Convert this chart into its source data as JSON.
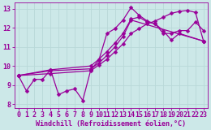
{
  "background_color": "#cce8e8",
  "grid_color": "#aadddd",
  "line_color": "#990099",
  "markersize": 2.5,
  "linewidth": 0.9,
  "xlabel": "Windchill (Refroidissement éolien,°C)",
  "xlabel_fontsize": 6.0,
  "tick_fontsize": 6.0,
  "ylim": [
    7.8,
    13.3
  ],
  "xlim": [
    -0.5,
    23.5
  ],
  "yticks": [
    8,
    9,
    10,
    11,
    12,
    13
  ],
  "xticks": [
    0,
    1,
    2,
    3,
    4,
    5,
    6,
    7,
    8,
    9,
    10,
    11,
    12,
    13,
    14,
    15,
    16,
    17,
    18,
    19,
    20,
    21,
    22,
    23
  ],
  "series": [
    {
      "x": [
        0,
        1,
        2,
        3,
        4,
        5,
        6,
        7,
        8,
        9,
        10,
        11,
        12,
        13,
        14,
        15,
        16,
        17,
        18,
        19,
        20,
        21,
        22,
        23
      ],
      "y": [
        9.5,
        8.7,
        9.3,
        9.3,
        9.8,
        8.5,
        8.7,
        8.8,
        8.2,
        9.8,
        10.3,
        11.7,
        11.95,
        12.4,
        13.05,
        12.65,
        12.35,
        12.2,
        11.7,
        11.7,
        11.85,
        11.85,
        12.3,
        11.85
      ]
    },
    {
      "x": [
        0,
        4,
        9,
        10,
        11,
        12,
        13,
        14,
        15,
        16,
        17,
        18,
        19,
        20,
        23
      ],
      "y": [
        9.5,
        9.8,
        10.0,
        10.35,
        10.75,
        11.2,
        11.7,
        12.45,
        12.55,
        12.3,
        12.2,
        11.85,
        11.35,
        11.7,
        11.3
      ]
    },
    {
      "x": [
        0,
        4,
        9,
        10,
        11,
        12,
        13,
        14,
        23
      ],
      "y": [
        9.5,
        9.75,
        9.85,
        10.15,
        10.55,
        11.0,
        11.55,
        12.4,
        11.3
      ]
    },
    {
      "x": [
        0,
        4,
        9,
        10,
        11,
        12,
        13,
        14,
        15,
        16,
        17,
        18,
        19,
        20,
        21,
        22,
        23
      ],
      "y": [
        9.5,
        9.6,
        9.75,
        10.05,
        10.35,
        10.75,
        11.15,
        11.7,
        11.95,
        12.2,
        12.35,
        12.55,
        12.75,
        12.85,
        12.9,
        12.8,
        11.3
      ]
    }
  ]
}
